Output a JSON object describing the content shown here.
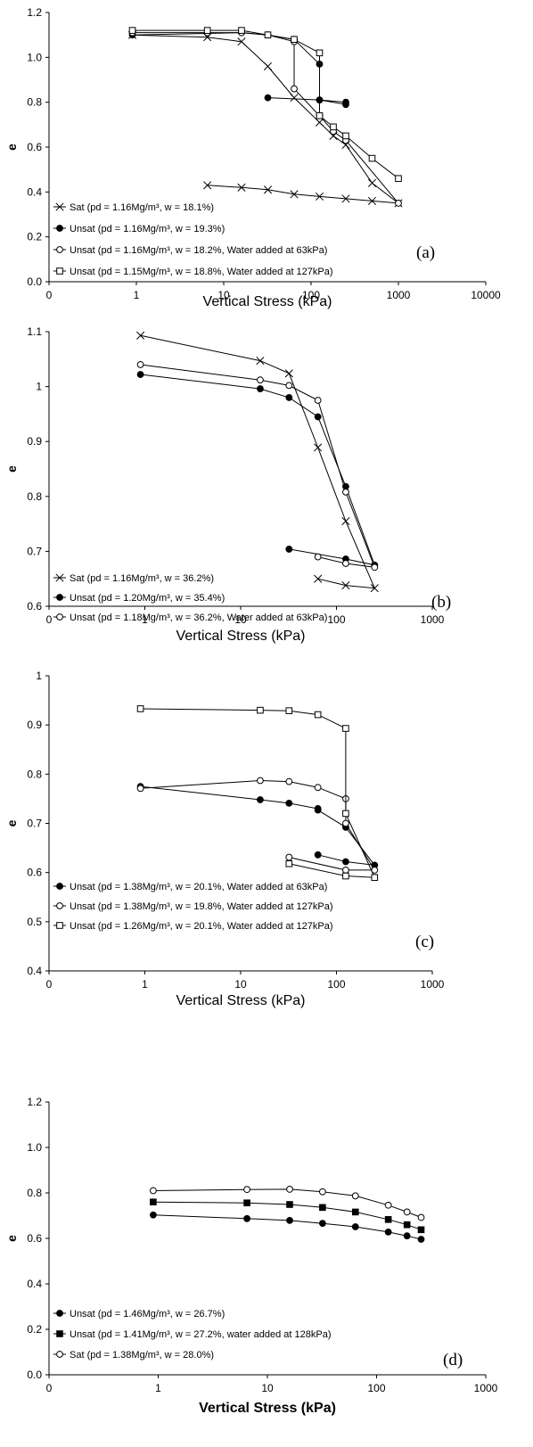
{
  "chart_data": [
    {
      "type": "line",
      "panel_label": "(a)",
      "xlabel": "Vertical Stress (kPa)",
      "ylabel": "e",
      "xscale": "log",
      "xlim": [
        0.1,
        10000
      ],
      "ylim": [
        0,
        1.2
      ],
      "x_tick_labels": [
        "0",
        "1",
        "10",
        "100",
        "1000",
        "10000"
      ],
      "y_tick_labels": [
        "0.0",
        "0.2",
        "0.4",
        "0.6",
        "0.8",
        "1.0",
        "1.2"
      ],
      "series": [
        {
          "name": "Sat (pd = 1.16Mg/m³, w = 18.1%)",
          "marker": "x",
          "x": [
            0.9,
            6.5,
            16,
            32,
            64,
            125,
            180,
            250,
            500,
            1000,
            500,
            250,
            125,
            64,
            32,
            16,
            6.5
          ],
          "y": [
            1.1,
            1.09,
            1.07,
            0.96,
            0.82,
            0.71,
            0.65,
            0.61,
            0.44,
            0.35,
            0.36,
            0.37,
            0.38,
            0.39,
            0.41,
            0.42,
            0.43
          ]
        },
        {
          "name": "Unsat (pd = 1.16Mg/m³, w = 19.3%)",
          "marker": "filled-circle",
          "x": [
            0.9,
            16,
            32,
            64,
            125,
            125,
            250,
            250,
            125,
            32
          ],
          "y": [
            1.1,
            1.11,
            1.1,
            1.08,
            0.97,
            0.81,
            0.79,
            0.8,
            0.81,
            0.82
          ]
        },
        {
          "name": "Unsat (pd = 1.16Mg/m³, w = 18.2%, Water added at 63kPa)",
          "marker": "open-circle",
          "x": [
            0.9,
            6.5,
            16,
            32,
            64,
            64,
            125,
            180,
            250,
            1000
          ],
          "y": [
            1.11,
            1.11,
            1.11,
            1.1,
            1.07,
            0.86,
            0.74,
            0.67,
            0.63,
            0.35
          ]
        },
        {
          "name": "Unsat (pd = 1.15Mg/m³, w = 18.8%, Water added at 127kPa)",
          "marker": "open-square",
          "x": [
            0.9,
            6.5,
            16,
            32,
            64,
            125,
            125,
            180,
            250,
            500,
            1000
          ],
          "y": [
            1.12,
            1.12,
            1.12,
            1.1,
            1.08,
            1.02,
            0.74,
            0.69,
            0.65,
            0.55,
            0.46
          ]
        }
      ]
    },
    {
      "type": "line",
      "panel_label": "(b)",
      "xlabel": "Vertical Stress (kPa)",
      "ylabel": "e",
      "xscale": "log",
      "xlim": [
        0.1,
        1000
      ],
      "ylim": [
        0.6,
        1.1
      ],
      "x_tick_labels": [
        "0",
        "1",
        "10",
        "100",
        "1000"
      ],
      "y_tick_labels": [
        "0.6",
        "0.7",
        "0.8",
        "0.9",
        "1",
        "1.1"
      ],
      "series": [
        {
          "name": "Sat (pd = 1.16Mg/m³, w = 36.2%)",
          "marker": "x",
          "x": [
            0.9,
            16,
            32,
            64,
            125,
            250,
            125,
            64
          ],
          "y": [
            1.093,
            1.047,
            1.024,
            0.889,
            0.755,
            0.633,
            0.638,
            0.65
          ]
        },
        {
          "name": "Unsat (pd = 1.20Mg/m³, w = 35.4%)",
          "marker": "filled-circle",
          "x": [
            0.9,
            16,
            32,
            64,
            125,
            250,
            125,
            32
          ],
          "y": [
            1.022,
            0.996,
            0.98,
            0.945,
            0.818,
            0.675,
            0.686,
            0.704
          ]
        },
        {
          "name": "Unsat (pd = 1.18Mg/m³, w = 36.2%, Water added at 63kPa)",
          "marker": "open-circle",
          "x": [
            0.9,
            16,
            32,
            64,
            125,
            250,
            125,
            64
          ],
          "y": [
            1.04,
            1.012,
            1.002,
            0.975,
            0.808,
            0.671,
            0.678,
            0.69
          ]
        }
      ]
    },
    {
      "type": "line",
      "panel_label": "(c)",
      "xlabel": "Vertical Stress (kPa)",
      "ylabel": "e",
      "xscale": "log",
      "xlim": [
        0.1,
        1000
      ],
      "ylim": [
        0.4,
        1.0
      ],
      "x_tick_labels": [
        "0",
        "1",
        "10",
        "100",
        "1000"
      ],
      "y_tick_labels": [
        "0.4",
        "0.5",
        "0.6",
        "0.7",
        "0.8",
        "0.9",
        "1"
      ],
      "series": [
        {
          "name": "Unsat (pd = 1.38Mg/m³, w = 20.1%, Water added at 63kPa)",
          "marker": "filled-circle",
          "x": [
            0.9,
            16,
            32,
            64,
            64,
            125,
            250,
            125,
            64
          ],
          "y": [
            0.775,
            0.748,
            0.741,
            0.73,
            0.727,
            0.692,
            0.615,
            0.622,
            0.636
          ]
        },
        {
          "name": "Unsat (pd = 1.38Mg/m³, w = 19.8%, Water added at 127kPa)",
          "marker": "open-circle",
          "x": [
            0.9,
            16,
            32,
            64,
            125,
            125,
            250,
            125,
            32
          ],
          "y": [
            0.771,
            0.787,
            0.785,
            0.773,
            0.75,
            0.7,
            0.605,
            0.605,
            0.631
          ]
        },
        {
          "name": "Unsat (pd = 1.26Mg/m³, w = 20.1%, Water added at 127kPa)",
          "marker": "open-square",
          "x": [
            0.9,
            16,
            32,
            64,
            125,
            125,
            250,
            125,
            32
          ],
          "y": [
            0.933,
            0.93,
            0.929,
            0.921,
            0.893,
            0.72,
            0.59,
            0.593,
            0.618
          ]
        }
      ]
    },
    {
      "type": "line",
      "panel_label": "(d)",
      "xlabel": "Vertical Stress (kPa)",
      "ylabel": "e",
      "xscale": "log",
      "xlim": [
        0.1,
        1000
      ],
      "ylim": [
        0,
        1.2
      ],
      "x_tick_labels": [
        "0",
        "1",
        "10",
        "100",
        "1000"
      ],
      "y_tick_labels": [
        "0.0",
        "0.2",
        "0.4",
        "0.6",
        "0.8",
        "1.0",
        "1.2"
      ],
      "series": [
        {
          "name": "Unsat (pd = 1.46Mg/m³, w = 26.7%)",
          "marker": "filled-circle",
          "x": [
            0.9,
            6.5,
            16,
            32,
            64,
            128,
            190,
            256
          ],
          "y": [
            0.703,
            0.687,
            0.679,
            0.666,
            0.651,
            0.628,
            0.611,
            0.596
          ]
        },
        {
          "name": "Unsat (pd = 1.41Mg/m³, w = 27.2%, water added at 128kPa)",
          "marker": "filled-square",
          "x": [
            0.9,
            6.5,
            16,
            32,
            64,
            128,
            190,
            256
          ],
          "y": [
            0.76,
            0.756,
            0.749,
            0.736,
            0.716,
            0.683,
            0.66,
            0.638
          ]
        },
        {
          "name": "Sat (pd = 1.38Mg/m³, w = 28.0%)",
          "marker": "open-circle",
          "x": [
            0.9,
            6.5,
            16,
            32,
            64,
            128,
            190,
            256
          ],
          "y": [
            0.81,
            0.815,
            0.816,
            0.805,
            0.787,
            0.746,
            0.716,
            0.692
          ]
        }
      ]
    }
  ]
}
